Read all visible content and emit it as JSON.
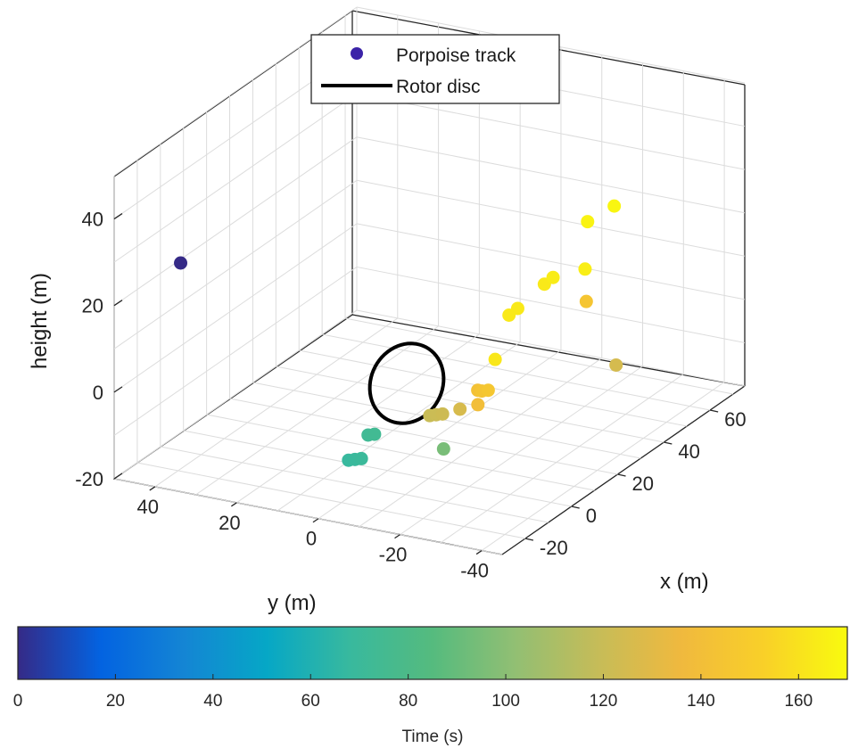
{
  "chart_data": {
    "type": "scatter3d",
    "xlabel": "x (m)",
    "ylabel": "y (m)",
    "zlabel": "height (m)",
    "x_ticks": [
      "-20",
      "0",
      "20",
      "40",
      "60"
    ],
    "y_ticks": [
      "40",
      "20",
      "0",
      "-20",
      "-40"
    ],
    "z_ticks": [
      "40",
      "20",
      "0",
      "-20"
    ],
    "xlim": [
      -30,
      75
    ],
    "ylim": [
      -45,
      50
    ],
    "zlim": [
      -20,
      50
    ],
    "grid": true,
    "legend": {
      "placement": "top",
      "entries": [
        {
          "label": "Porpoise track",
          "marker": "circle",
          "color": "#3b23a8"
        },
        {
          "label": "Rotor disc",
          "marker": "line",
          "color": "#000000"
        }
      ]
    },
    "colorbar": {
      "label": "Time (s)",
      "min": 0,
      "max": 170,
      "ticks": [
        "0",
        "20",
        "40",
        "60",
        "80",
        "100",
        "120",
        "140",
        "160"
      ],
      "colormap": "parula"
    },
    "series": [
      {
        "name": "Porpoise track",
        "points": [
          {
            "x": -3,
            "y": 49,
            "z": 20,
            "t": 0
          },
          {
            "x": -24,
            "y": -4,
            "z": -8,
            "t": 68
          },
          {
            "x": -23,
            "y": -5,
            "z": -8,
            "t": 69
          },
          {
            "x": -22,
            "y": -6,
            "z": -8,
            "t": 70
          },
          {
            "x": -12,
            "y": -2,
            "z": -7,
            "t": 73
          },
          {
            "x": -11,
            "y": -3,
            "z": -7,
            "t": 74
          },
          {
            "x": -20,
            "y": -25,
            "z": -3,
            "t": 95
          },
          {
            "x": -3,
            "y": -12,
            "z": -4,
            "t": 120
          },
          {
            "x": -2,
            "y": -13,
            "z": -4,
            "t": 121
          },
          {
            "x": -1,
            "y": -14,
            "z": -4,
            "t": 122
          },
          {
            "x": 3,
            "y": -16,
            "z": -4,
            "t": 126
          },
          {
            "x": 14,
            "y": -48,
            "z": 8,
            "t": 125
          },
          {
            "x": 9,
            "y": -17,
            "z": -5,
            "t": 140
          },
          {
            "x": 16,
            "y": -13,
            "z": -5,
            "t": 142
          },
          {
            "x": 16,
            "y": -14,
            "z": -5,
            "t": 144
          },
          {
            "x": 17,
            "y": -15,
            "z": -5,
            "t": 146
          },
          {
            "x": 20,
            "y": -15,
            "z": 1,
            "t": 162
          },
          {
            "x": 26,
            "y": -15,
            "z": 9,
            "t": 163
          },
          {
            "x": 28,
            "y": -16,
            "z": 10,
            "t": 163
          },
          {
            "x": 36,
            "y": -18,
            "z": 13,
            "t": 163
          },
          {
            "x": 38,
            "y": -19,
            "z": 14,
            "t": 164
          },
          {
            "x": 40,
            "y": -26,
            "z": 9,
            "t": 145
          },
          {
            "x": 43,
            "y": -24,
            "z": 15,
            "t": 165
          },
          {
            "x": 60,
            "y": -15,
            "z": 18,
            "t": 167
          },
          {
            "x": 68,
            "y": -17,
            "z": 19,
            "t": 168
          }
        ]
      },
      {
        "name": "Rotor disc",
        "center": {
          "x": 0,
          "y": 0,
          "z": 0
        },
        "radius": 13
      }
    ]
  }
}
